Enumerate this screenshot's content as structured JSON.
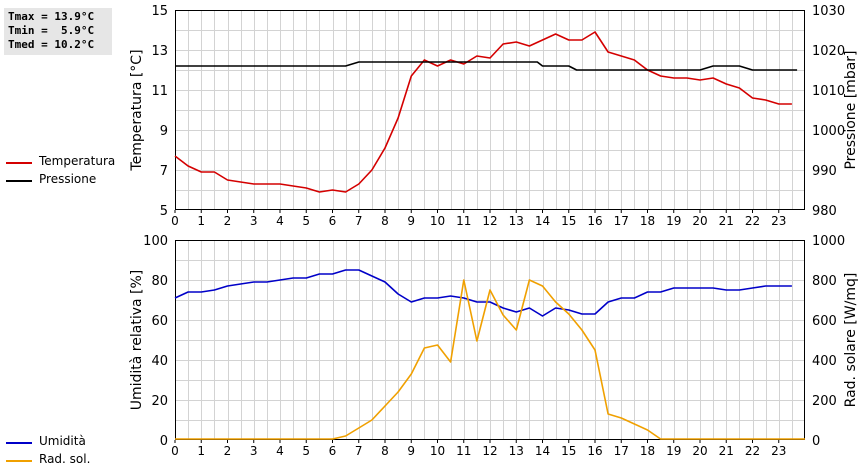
{
  "stats": {
    "tmax": "Tmax = 13.9°C",
    "tmin": "Tmin =  5.9°C",
    "tmed": "Tmed = 10.2°C"
  },
  "colors": {
    "temperature": "#d40000",
    "pressure": "#000000",
    "humidity": "#0000c8",
    "radiation": "#f0a000",
    "grid": "#d3d3d3"
  },
  "legend_top": [
    {
      "label": "Temperatura",
      "color": "#d40000"
    },
    {
      "label": "Pressione",
      "color": "#000000"
    }
  ],
  "legend_bottom": [
    {
      "label": "Umidità",
      "color": "#0000c8"
    },
    {
      "label": "Rad. sol.",
      "color": "#f0a000"
    }
  ],
  "chart_data": [
    {
      "type": "line",
      "ylabel": "Temperatura [°C]",
      "y2label": "Pressione [mbar]",
      "xlim": [
        0,
        24
      ],
      "ylim": [
        5,
        15
      ],
      "y2lim": [
        980,
        1030
      ],
      "x_ticks": [
        0,
        1,
        2,
        3,
        4,
        5,
        6,
        7,
        8,
        9,
        10,
        11,
        12,
        13,
        14,
        15,
        16,
        17,
        18,
        19,
        20,
        21,
        22,
        23
      ],
      "y_ticks": [
        5,
        7,
        9,
        11,
        13,
        15
      ],
      "y2_ticks": [
        980,
        990,
        1000,
        1010,
        1020,
        1030
      ],
      "grid": true,
      "series": [
        {
          "name": "Temperatura",
          "axis": "left",
          "x": [
            0,
            0.5,
            1,
            1.5,
            2,
            2.5,
            3,
            3.5,
            4,
            4.5,
            5,
            5.5,
            6,
            6.5,
            7,
            7.5,
            8,
            8.5,
            9,
            9.5,
            10,
            10.5,
            11,
            11.5,
            12,
            12.5,
            13,
            13.5,
            14,
            14.5,
            15,
            15.5,
            16,
            16.5,
            17,
            17.5,
            18,
            18.5,
            19,
            19.5,
            20,
            20.5,
            21,
            21.5,
            22,
            22.5,
            23,
            23.5
          ],
          "y": [
            7.7,
            7.2,
            6.9,
            6.9,
            6.5,
            6.4,
            6.3,
            6.3,
            6.3,
            6.2,
            6.1,
            5.9,
            6.0,
            5.9,
            6.3,
            7.0,
            8.1,
            9.6,
            11.7,
            12.5,
            12.2,
            12.5,
            12.3,
            12.7,
            12.6,
            13.3,
            13.4,
            13.2,
            13.5,
            13.8,
            13.5,
            13.5,
            13.9,
            12.9,
            12.7,
            12.5,
            12.0,
            11.7,
            11.6,
            11.6,
            11.5,
            11.6,
            11.3,
            11.1,
            10.6,
            10.5,
            10.3,
            10.3
          ]
        },
        {
          "name": "Pressione",
          "axis": "right",
          "x": [
            0,
            6.5,
            7,
            13.8,
            14,
            15,
            15.3,
            20,
            20.5,
            21.5,
            22,
            23.7
          ],
          "y": [
            1016,
            1016,
            1017,
            1017,
            1016,
            1016,
            1015,
            1015,
            1016,
            1016,
            1015,
            1015
          ]
        }
      ]
    },
    {
      "type": "line",
      "ylabel": "Umidità relativa [%]",
      "y2label": "Rad. solare [W/mq]",
      "xlim": [
        0,
        24
      ],
      "ylim": [
        0,
        100
      ],
      "y2lim": [
        0,
        1000
      ],
      "x_ticks": [
        0,
        1,
        2,
        3,
        4,
        5,
        6,
        7,
        8,
        9,
        10,
        11,
        12,
        13,
        14,
        15,
        16,
        17,
        18,
        19,
        20,
        21,
        22,
        23
      ],
      "y_ticks": [
        0,
        20,
        40,
        60,
        80,
        100
      ],
      "y2_ticks": [
        0,
        200,
        400,
        600,
        800,
        1000
      ],
      "grid": true,
      "series": [
        {
          "name": "Umidità",
          "axis": "left",
          "x": [
            0,
            0.5,
            1,
            1.5,
            2,
            2.5,
            3,
            3.5,
            4,
            4.5,
            5,
            5.5,
            6,
            6.5,
            7,
            7.5,
            8,
            8.5,
            9,
            9.5,
            10,
            10.5,
            11,
            11.5,
            12,
            12.5,
            13,
            13.5,
            14,
            14.5,
            15,
            15.5,
            16,
            16.5,
            17,
            17.5,
            18,
            18.5,
            19,
            19.5,
            20,
            20.5,
            21,
            21.5,
            22,
            22.5,
            23,
            23.5
          ],
          "y": [
            71,
            74,
            74,
            75,
            77,
            78,
            79,
            79,
            80,
            81,
            81,
            83,
            83,
            85,
            85,
            82,
            79,
            73,
            69,
            71,
            71,
            72,
            71,
            69,
            69,
            66,
            64,
            66,
            62,
            66,
            65,
            63,
            63,
            69,
            71,
            71,
            74,
            74,
            76,
            76,
            76,
            76,
            75,
            75,
            76,
            77,
            77,
            77
          ]
        },
        {
          "name": "Rad. sol.",
          "axis": "right",
          "x": [
            0,
            6,
            6.5,
            7,
            7.5,
            8,
            8.5,
            9,
            9.5,
            10,
            10.5,
            11,
            11.5,
            12,
            12.5,
            13,
            13.5,
            14,
            14.5,
            15,
            15.5,
            16,
            16.5,
            17,
            17.5,
            18,
            18.5,
            24
          ],
          "y": [
            5,
            5,
            20,
            60,
            100,
            170,
            240,
            330,
            460,
            475,
            390,
            800,
            495,
            750,
            625,
            550,
            800,
            770,
            690,
            630,
            550,
            450,
            130,
            110,
            80,
            50,
            5,
            5
          ]
        }
      ]
    }
  ]
}
